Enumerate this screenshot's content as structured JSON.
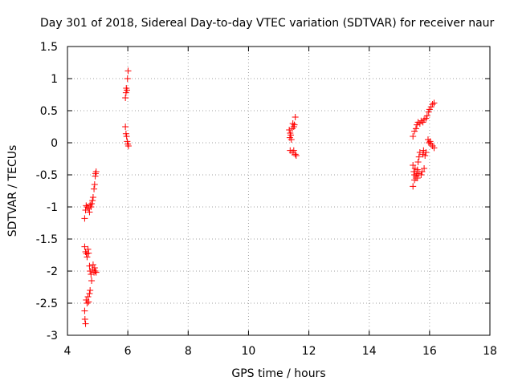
{
  "chart_data": {
    "type": "scatter",
    "title": "Day 301 of 2018, Sidereal Day-to-day VTEC variation (SDTVAR) for receiver naur",
    "xlabel": "GPS time / hours",
    "ylabel": "SDTVAR / TECUs",
    "xlim": [
      4,
      18
    ],
    "ylim": [
      -3,
      1.5
    ],
    "xticks": [
      4,
      6,
      8,
      10,
      12,
      14,
      16,
      18
    ],
    "yticks": [
      -3,
      -2.5,
      -2,
      -1.5,
      -1,
      -0.5,
      0,
      0.5,
      1,
      1.5
    ],
    "xtick_labels": [
      "4",
      "6",
      "8",
      "10",
      "12",
      "14",
      "16",
      "18"
    ],
    "ytick_labels": [
      "-3",
      "-2.5",
      "-2",
      "-1.5",
      "-1",
      "-0.5",
      "0",
      "0.5",
      "1",
      "1.5"
    ],
    "grid": true,
    "marker": "+",
    "color": "#ff0000",
    "series": [
      {
        "name": "SDTVAR",
        "points": [
          [
            4.57,
            -1.18
          ],
          [
            4.6,
            -1.05
          ],
          [
            4.62,
            -0.98
          ],
          [
            4.65,
            -1.0
          ],
          [
            4.7,
            -1.02
          ],
          [
            4.73,
            -1.08
          ],
          [
            4.75,
            -0.97
          ],
          [
            4.78,
            -1.0
          ],
          [
            4.8,
            -0.95
          ],
          [
            4.83,
            -0.9
          ],
          [
            4.85,
            -0.85
          ],
          [
            4.88,
            -0.72
          ],
          [
            4.9,
            -0.65
          ],
          [
            4.92,
            -0.52
          ],
          [
            4.95,
            -0.45
          ],
          [
            4.93,
            -0.48
          ],
          [
            4.57,
            -1.62
          ],
          [
            4.6,
            -1.7
          ],
          [
            4.63,
            -1.73
          ],
          [
            4.65,
            -1.78
          ],
          [
            4.68,
            -1.66
          ],
          [
            4.7,
            -1.72
          ],
          [
            4.73,
            -1.92
          ],
          [
            4.75,
            -2.0
          ],
          [
            4.78,
            -2.05
          ],
          [
            4.8,
            -2.15
          ],
          [
            4.83,
            -1.98
          ],
          [
            4.85,
            -1.9
          ],
          [
            4.88,
            -2.02
          ],
          [
            4.9,
            -1.95
          ],
          [
            4.92,
            -2.0
          ],
          [
            4.95,
            -2.02
          ],
          [
            4.57,
            -2.62
          ],
          [
            4.58,
            -2.75
          ],
          [
            4.6,
            -2.82
          ],
          [
            4.62,
            -2.45
          ],
          [
            4.65,
            -2.5
          ],
          [
            4.68,
            -2.4
          ],
          [
            4.7,
            -2.48
          ],
          [
            4.73,
            -2.35
          ],
          [
            4.75,
            -2.3
          ],
          [
            5.92,
            0.25
          ],
          [
            5.94,
            0.14
          ],
          [
            5.96,
            0.1
          ],
          [
            5.98,
            0.02
          ],
          [
            6.0,
            -0.02
          ],
          [
            6.02,
            -0.05
          ],
          [
            5.92,
            0.7
          ],
          [
            5.94,
            0.78
          ],
          [
            5.95,
            0.85
          ],
          [
            5.97,
            0.82
          ],
          [
            5.99,
            1.0
          ],
          [
            6.01,
            1.12
          ],
          [
            11.35,
            0.2
          ],
          [
            11.37,
            0.08
          ],
          [
            11.38,
            0.15
          ],
          [
            11.4,
            0.12
          ],
          [
            11.42,
            0.05
          ],
          [
            11.45,
            0.22
          ],
          [
            11.47,
            0.3
          ],
          [
            11.5,
            0.25
          ],
          [
            11.52,
            0.28
          ],
          [
            11.55,
            0.4
          ],
          [
            11.38,
            -0.12
          ],
          [
            11.45,
            -0.15
          ],
          [
            11.5,
            -0.12
          ],
          [
            11.55,
            -0.18
          ],
          [
            11.58,
            -0.2
          ],
          [
            15.45,
            0.1
          ],
          [
            15.5,
            0.18
          ],
          [
            15.55,
            0.22
          ],
          [
            15.58,
            0.28
          ],
          [
            15.62,
            0.32
          ],
          [
            15.68,
            0.3
          ],
          [
            15.72,
            0.34
          ],
          [
            15.78,
            0.32
          ],
          [
            15.82,
            0.36
          ],
          [
            15.88,
            0.38
          ],
          [
            15.92,
            0.42
          ],
          [
            15.97,
            0.48
          ],
          [
            16.0,
            0.52
          ],
          [
            16.05,
            0.56
          ],
          [
            16.1,
            0.6
          ],
          [
            16.15,
            0.62
          ],
          [
            15.45,
            -0.35
          ],
          [
            15.48,
            -0.45
          ],
          [
            15.5,
            -0.5
          ],
          [
            15.52,
            -0.4
          ],
          [
            15.55,
            -0.55
          ],
          [
            15.58,
            -0.48
          ],
          [
            15.6,
            -0.42
          ],
          [
            15.62,
            -0.3
          ],
          [
            15.65,
            -0.22
          ],
          [
            15.68,
            -0.15
          ],
          [
            15.72,
            -0.5
          ],
          [
            15.75,
            -0.45
          ],
          [
            15.78,
            -0.18
          ],
          [
            15.8,
            -0.12
          ],
          [
            15.82,
            -0.4
          ],
          [
            15.85,
            -0.2
          ],
          [
            15.88,
            -0.15
          ],
          [
            15.45,
            -0.68
          ],
          [
            15.5,
            -0.58
          ],
          [
            15.55,
            -0.52
          ],
          [
            15.6,
            -0.55
          ],
          [
            15.65,
            -0.48
          ],
          [
            15.95,
            0.05
          ],
          [
            15.98,
            0.0
          ],
          [
            16.02,
            0.02
          ],
          [
            16.05,
            -0.02
          ],
          [
            16.1,
            -0.05
          ],
          [
            16.15,
            -0.08
          ]
        ]
      }
    ]
  }
}
